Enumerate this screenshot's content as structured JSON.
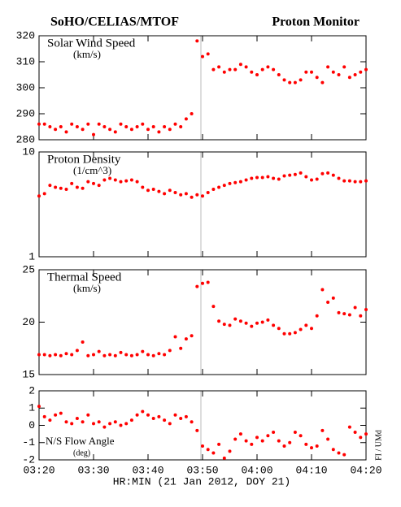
{
  "title_left": "SoHO/CELIAS/MTOF",
  "title_right": "Proton Monitor",
  "xlabel": "HR:MIN (21 Jan 2012, DOY 21)",
  "credit": "FI / UMd",
  "chart_data": [
    {
      "type": "scatter",
      "label": "Solar Wind Speed",
      "unit": "(km/s)",
      "color": "#ff0000",
      "log": false,
      "xlim": [
        "03:20",
        "04:20"
      ],
      "xticks": [
        "03:20",
        "03:30",
        "03:40",
        "03:50",
        "04:00",
        "04:10",
        "04:20"
      ],
      "ylim": [
        280,
        320
      ],
      "yticks": [
        280,
        290,
        300,
        310,
        320
      ],
      "x": [
        "03:20",
        "03:21",
        "03:22",
        "03:23",
        "03:24",
        "03:25",
        "03:26",
        "03:27",
        "03:28",
        "03:29",
        "03:30",
        "03:31",
        "03:32",
        "03:33",
        "03:34",
        "03:35",
        "03:36",
        "03:37",
        "03:38",
        "03:39",
        "03:40",
        "03:41",
        "03:42",
        "03:43",
        "03:44",
        "03:45",
        "03:46",
        "03:47",
        "03:48",
        "03:49",
        "03:50",
        "03:51",
        "03:52",
        "03:53",
        "03:54",
        "03:55",
        "03:56",
        "03:57",
        "03:58",
        "03:59",
        "04:00",
        "04:01",
        "04:02",
        "04:03",
        "04:04",
        "04:05",
        "04:06",
        "04:07",
        "04:08",
        "04:09",
        "04:10",
        "04:11",
        "04:12",
        "04:13",
        "04:14",
        "04:15",
        "04:16",
        "04:17",
        "04:18",
        "04:19",
        "04:20"
      ],
      "values": [
        286,
        286,
        285,
        284,
        285,
        283,
        286,
        285,
        284,
        286,
        282,
        286,
        285,
        284,
        283,
        286,
        285,
        284,
        285,
        286,
        284,
        285,
        283,
        285,
        284,
        286,
        285,
        288,
        290,
        318,
        312,
        313,
        307,
        308,
        306,
        307,
        307,
        309,
        308,
        306,
        305,
        307,
        308,
        307,
        305,
        303,
        302,
        302,
        303,
        306,
        306,
        304,
        302,
        308,
        306,
        305,
        308,
        304,
        305,
        306,
        307
      ]
    },
    {
      "type": "scatter",
      "label": "Proton Density",
      "unit": "(1/cm^3)",
      "color": "#ff0000",
      "log": true,
      "xlim": [
        "03:20",
        "04:20"
      ],
      "xticks": [
        "03:20",
        "03:30",
        "03:40",
        "03:50",
        "04:00",
        "04:10",
        "04:20"
      ],
      "ylim": [
        1,
        10
      ],
      "yticks": [
        1,
        10
      ],
      "x": [
        "03:20",
        "03:21",
        "03:22",
        "03:23",
        "03:24",
        "03:25",
        "03:26",
        "03:27",
        "03:28",
        "03:29",
        "03:30",
        "03:31",
        "03:32",
        "03:33",
        "03:34",
        "03:35",
        "03:36",
        "03:37",
        "03:38",
        "03:39",
        "03:40",
        "03:41",
        "03:42",
        "03:43",
        "03:44",
        "03:45",
        "03:46",
        "03:47",
        "03:48",
        "03:49",
        "03:50",
        "03:51",
        "03:52",
        "03:53",
        "03:54",
        "03:55",
        "03:56",
        "03:57",
        "03:58",
        "03:59",
        "04:00",
        "04:01",
        "04:02",
        "04:03",
        "04:04",
        "04:05",
        "04:06",
        "04:07",
        "04:08",
        "04:09",
        "04:10",
        "04:11",
        "04:12",
        "04:13",
        "04:14",
        "04:15",
        "04:16",
        "04:17",
        "04:18",
        "04:19",
        "04:20"
      ],
      "values": [
        3.8,
        4.0,
        4.8,
        4.6,
        4.5,
        4.4,
        5.0,
        4.6,
        4.5,
        5.2,
        5.0,
        4.8,
        5.4,
        5.6,
        5.4,
        5.2,
        5.3,
        5.4,
        5.2,
        4.6,
        4.3,
        4.4,
        4.2,
        4.0,
        4.3,
        4.1,
        3.9,
        4.0,
        3.7,
        3.9,
        3.8,
        4.1,
        4.4,
        4.6,
        4.8,
        5.0,
        5.1,
        5.2,
        5.4,
        5.6,
        5.7,
        5.7,
        5.8,
        5.6,
        5.5,
        5.9,
        6.0,
        6.1,
        6.3,
        5.8,
        5.4,
        5.5,
        6.2,
        6.3,
        6.0,
        5.6,
        5.3,
        5.3,
        5.2,
        5.2,
        5.3
      ]
    },
    {
      "type": "scatter",
      "label": "Thermal Speed",
      "unit": "(km/s)",
      "color": "#ff0000",
      "log": false,
      "xlim": [
        "03:20",
        "04:20"
      ],
      "xticks": [
        "03:20",
        "03:30",
        "03:40",
        "03:50",
        "04:00",
        "04:10",
        "04:20"
      ],
      "ylim": [
        15,
        25
      ],
      "yticks": [
        15,
        20,
        25
      ],
      "x": [
        "03:20",
        "03:21",
        "03:22",
        "03:23",
        "03:24",
        "03:25",
        "03:26",
        "03:27",
        "03:28",
        "03:29",
        "03:30",
        "03:31",
        "03:32",
        "03:33",
        "03:34",
        "03:35",
        "03:36",
        "03:37",
        "03:38",
        "03:39",
        "03:40",
        "03:41",
        "03:42",
        "03:43",
        "03:44",
        "03:45",
        "03:46",
        "03:47",
        "03:48",
        "03:49",
        "03:50",
        "03:51",
        "03:52",
        "03:53",
        "03:54",
        "03:55",
        "03:56",
        "03:57",
        "03:58",
        "03:59",
        "04:00",
        "04:01",
        "04:02",
        "04:03",
        "04:04",
        "04:05",
        "04:06",
        "04:07",
        "04:08",
        "04:09",
        "04:10",
        "04:11",
        "04:12",
        "04:13",
        "04:14",
        "04:15",
        "04:16",
        "04:17",
        "04:18",
        "04:19",
        "04:20"
      ],
      "values": [
        16.9,
        16.9,
        16.8,
        16.9,
        16.8,
        17.0,
        16.9,
        17.3,
        18.1,
        16.8,
        16.9,
        17.2,
        16.8,
        16.9,
        16.8,
        17.1,
        16.9,
        16.8,
        16.9,
        17.2,
        16.9,
        16.8,
        17.0,
        16.9,
        17.3,
        18.6,
        17.5,
        18.4,
        18.7,
        23.4,
        23.7,
        23.8,
        21.5,
        20.1,
        19.8,
        19.7,
        20.3,
        20.1,
        19.9,
        19.6,
        19.9,
        20.0,
        20.2,
        19.7,
        19.4,
        18.9,
        18.9,
        19.0,
        19.3,
        19.7,
        19.4,
        20.6,
        23.1,
        21.9,
        22.3,
        20.9,
        20.8,
        20.7,
        21.4,
        20.6,
        21.2
      ]
    },
    {
      "type": "scatter",
      "label": "N/S Flow Angle",
      "unit": "(deg)",
      "color": "#ff0000",
      "log": false,
      "show_xticklabels": true,
      "xlim": [
        "03:20",
        "04:20"
      ],
      "xticks": [
        "03:20",
        "03:30",
        "03:40",
        "03:50",
        "04:00",
        "04:10",
        "04:20"
      ],
      "ylim": [
        -2,
        2
      ],
      "yticks": [
        -2,
        -1,
        0,
        1,
        2
      ],
      "x": [
        "03:20",
        "03:21",
        "03:22",
        "03:23",
        "03:24",
        "03:25",
        "03:26",
        "03:27",
        "03:28",
        "03:29",
        "03:30",
        "03:31",
        "03:32",
        "03:33",
        "03:34",
        "03:35",
        "03:36",
        "03:37",
        "03:38",
        "03:39",
        "03:40",
        "03:41",
        "03:42",
        "03:43",
        "03:44",
        "03:45",
        "03:46",
        "03:47",
        "03:48",
        "03:49",
        "03:50",
        "03:51",
        "03:52",
        "03:53",
        "03:54",
        "03:55",
        "03:56",
        "03:57",
        "03:58",
        "03:59",
        "04:00",
        "04:01",
        "04:02",
        "04:03",
        "04:04",
        "04:05",
        "04:06",
        "04:07",
        "04:08",
        "04:09",
        "04:10",
        "04:11",
        "04:12",
        "04:13",
        "04:14",
        "04:15",
        "04:16",
        "04:17",
        "04:18",
        "04:19",
        "04:20"
      ],
      "values": [
        1.1,
        0.5,
        0.3,
        0.6,
        0.7,
        0.2,
        0.1,
        0.4,
        0.2,
        0.6,
        0.1,
        0.2,
        -0.1,
        0.1,
        0.2,
        0.0,
        0.1,
        0.3,
        0.6,
        0.8,
        0.6,
        0.4,
        0.5,
        0.3,
        0.1,
        0.6,
        0.4,
        0.5,
        0.2,
        -0.3,
        -1.2,
        -1.4,
        -1.6,
        -1.1,
        -1.9,
        -1.5,
        -0.8,
        -0.5,
        -0.9,
        -1.1,
        -0.7,
        -0.9,
        -0.6,
        -0.4,
        -0.9,
        -1.2,
        -1.0,
        -0.4,
        -0.6,
        -1.1,
        -1.3,
        -1.2,
        -0.3,
        -0.8,
        -1.4,
        -1.6,
        -1.7,
        -0.1,
        -0.4,
        -0.7,
        -0.5
      ]
    }
  ]
}
